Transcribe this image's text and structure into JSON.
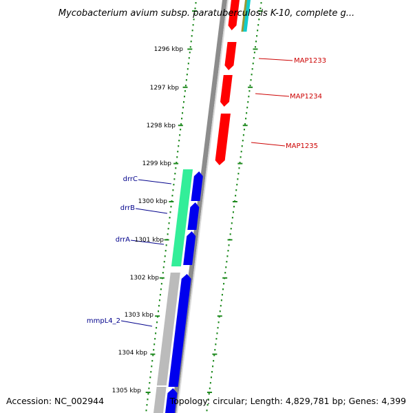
{
  "title": "Mycobacterium avium subsp. paratuberculosis K-10, complete g...",
  "footer": {
    "accession": "Accession: NC_002944",
    "summary": "Topology: circular; Length: 4,829,781 bp; Genes: 4,399"
  },
  "colors": {
    "background": "#ffffff",
    "backbone": "#8c8c8c",
    "backbone_shade": "#c8c8c8",
    "tick_dots": "#1f8a1f",
    "forward_gene": "#0000ee",
    "reverse_gene": "#ff0000",
    "green_feature": "#33ee99",
    "gray_feature": "#bbbbbb",
    "left_label": "#00008b",
    "right_label": "#cc0000",
    "cyan_feature": "#11cccc",
    "olive_feature": "#999933"
  },
  "chart_data": {
    "type": "genome-map",
    "scale_unit": "kbp",
    "ticks": [
      "1296 kbp",
      "1297 kbp",
      "1298 kbp",
      "1299 kbp",
      "1300 kbp",
      "1301 kbp",
      "1302 kbp",
      "1303 kbp",
      "1304 kbp",
      "1305 kbp"
    ],
    "reverse_strand_genes": [
      "MAP1233",
      "MAP1234",
      "MAP1235"
    ],
    "forward_strand_genes": [
      "drrC",
      "drrB",
      "drrA",
      "mmpL4_2"
    ]
  }
}
